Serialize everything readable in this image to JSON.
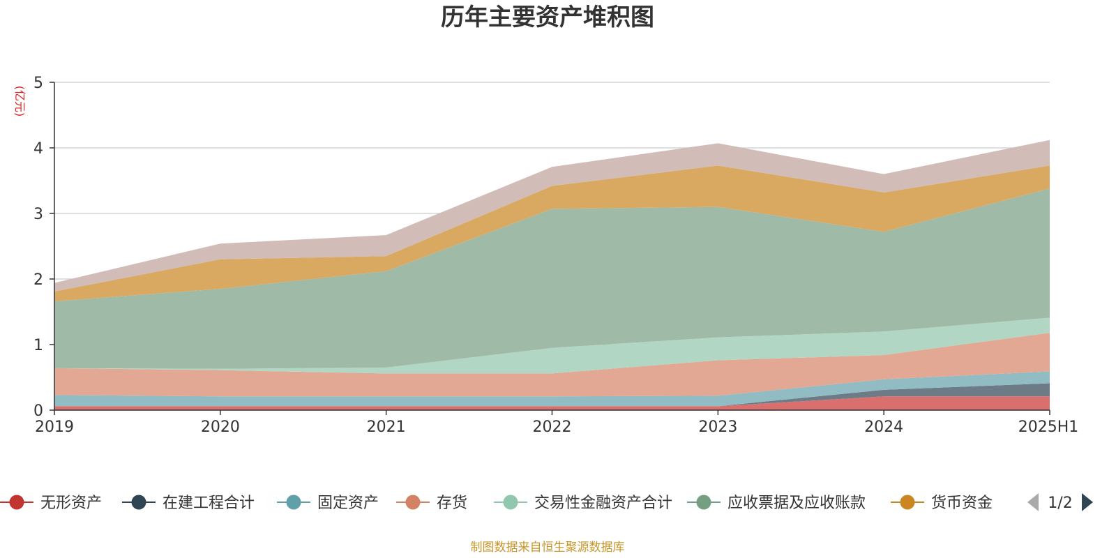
{
  "chart_data": {
    "type": "area",
    "stacked": true,
    "title": "历年主要资产堆积图",
    "unit_label": "(亿元)",
    "categories": [
      "2019",
      "2020",
      "2021",
      "2022",
      "2023",
      "2024",
      "2025H1"
    ],
    "ylim": [
      0,
      5
    ],
    "yticks": [
      0,
      1,
      2,
      3,
      4,
      5
    ],
    "grid": true,
    "series": [
      {
        "name": "无形资产",
        "color": "#d9706e",
        "values": [
          0.06,
          0.06,
          0.06,
          0.06,
          0.06,
          0.21,
          0.21
        ]
      },
      {
        "name": "在建工程合计",
        "color": "#6d7b86",
        "values": [
          0.0,
          0.0,
          0.0,
          0.0,
          0.0,
          0.1,
          0.2
        ]
      },
      {
        "name": "固定资产",
        "color": "#92bcc3",
        "values": [
          0.17,
          0.15,
          0.15,
          0.15,
          0.16,
          0.16,
          0.18
        ]
      },
      {
        "name": "存货",
        "color": "#e2a894",
        "values": [
          0.41,
          0.4,
          0.35,
          0.35,
          0.54,
          0.37,
          0.59
        ]
      },
      {
        "name": "交易性金融资产合计",
        "color": "#b1d7c4",
        "values": [
          0.0,
          0.02,
          0.09,
          0.39,
          0.35,
          0.36,
          0.23
        ]
      },
      {
        "name": "应收票据及应收账款",
        "color": "#9fbaa6",
        "values": [
          1.02,
          1.22,
          1.47,
          2.12,
          1.99,
          1.52,
          1.97
        ]
      },
      {
        "name": "货币资金",
        "color": "#d9a962",
        "values": [
          0.15,
          0.45,
          0.23,
          0.35,
          0.63,
          0.6,
          0.35
        ]
      },
      {
        "name": "",
        "color": "#d1bcb8",
        "values": [
          0.13,
          0.24,
          0.32,
          0.29,
          0.34,
          0.28,
          0.39
        ]
      }
    ],
    "legend": {
      "position": "bottom",
      "items": [
        {
          "name": "无形资产",
          "color": "#c23531"
        },
        {
          "name": "在建工程合计",
          "color": "#2f4554"
        },
        {
          "name": "固定资产",
          "color": "#61a0a8"
        },
        {
          "name": "存货",
          "color": "#d48265"
        },
        {
          "name": "交易性金融资产合计",
          "color": "#91c7ae"
        },
        {
          "name": "应收票据及应收账款",
          "color": "#749f83"
        },
        {
          "name": "货币资金",
          "color": "#ca8622"
        }
      ],
      "page": "1/2"
    },
    "source": "制图数据来自恒生聚源数据库"
  }
}
